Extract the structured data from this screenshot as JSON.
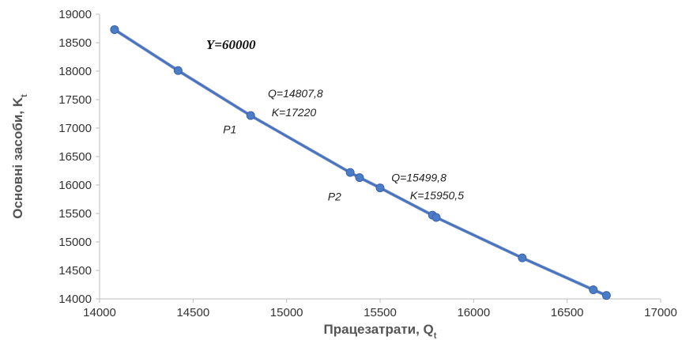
{
  "chart_data": {
    "type": "line",
    "title": "",
    "xlabel": "Працезатрати, Q",
    "xlabel_sub": "t",
    "ylabel": "Основні засоби, K",
    "ylabel_sub": "t",
    "xlim": [
      14000,
      17000
    ],
    "ylim": [
      14000,
      19000
    ],
    "x_ticks": [
      14000,
      14500,
      15000,
      15500,
      16000,
      16500,
      17000
    ],
    "y_ticks": [
      14000,
      14500,
      15000,
      15500,
      16000,
      16500,
      17000,
      17500,
      18000,
      18500,
      19000
    ],
    "grid": false,
    "legend": "none",
    "series": [
      {
        "color": "#4472c4",
        "marker_color": "#4a7cc7",
        "points": [
          {
            "x": 14080,
            "y": 18730
          },
          {
            "x": 14420,
            "y": 18010
          },
          {
            "x": 14807.8,
            "y": 17220
          },
          {
            "x": 15340,
            "y": 16220
          },
          {
            "x": 15390,
            "y": 16130
          },
          {
            "x": 15499.8,
            "y": 15950.5
          },
          {
            "x": 15780,
            "y": 15470
          },
          {
            "x": 15800,
            "y": 15430
          },
          {
            "x": 16260,
            "y": 14720
          },
          {
            "x": 16640,
            "y": 14160
          },
          {
            "x": 16710,
            "y": 14060
          }
        ]
      }
    ],
    "annotations": [
      {
        "text": "Y=60000",
        "x": 14570,
        "y": 18390,
        "style": "bold"
      },
      {
        "text": "Q=14807,8",
        "x": 14900,
        "y": 17540,
        "style": "italic"
      },
      {
        "text": "K=17220",
        "x": 14920,
        "y": 17210,
        "style": "italic"
      },
      {
        "text": "P1",
        "x": 14660,
        "y": 16910,
        "style": "italic"
      },
      {
        "text": "Q=15499,8",
        "x": 15560,
        "y": 16060,
        "style": "italic"
      },
      {
        "text": "K=15950,5",
        "x": 15660,
        "y": 15750,
        "style": "italic"
      },
      {
        "text": "P2",
        "x": 15220,
        "y": 15730,
        "style": "italic"
      }
    ]
  }
}
